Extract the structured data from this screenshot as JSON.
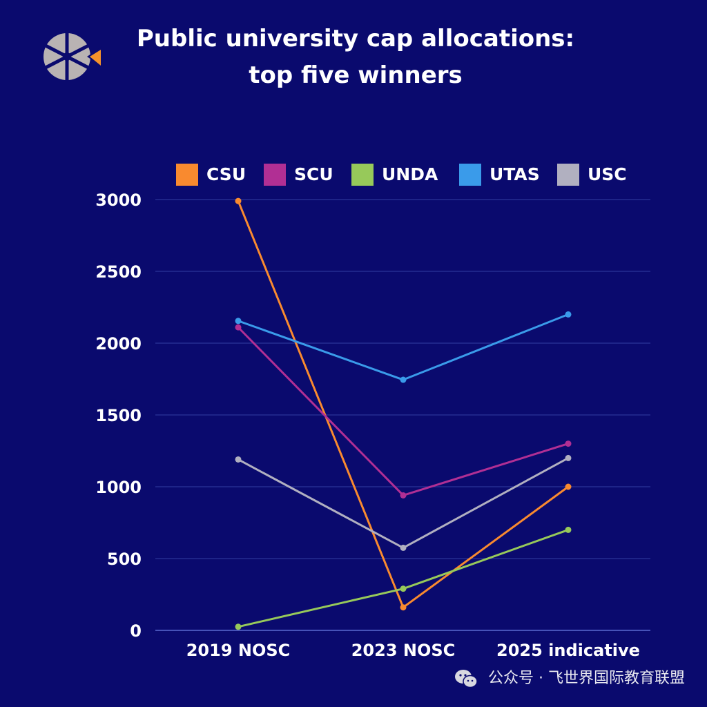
{
  "title": {
    "line1": "Public university cap allocations:",
    "line2": "top five winners"
  },
  "colors": {
    "background": "#0a0a6e",
    "grid": "#2b3599",
    "axis": "#5a6bd0",
    "logo_gray": "#b9b3b3",
    "logo_orange": "#f5922b"
  },
  "logo": {
    "icon": "pinwheel-logo-icon"
  },
  "watermark": {
    "icon": "wechat-icon",
    "text": "公众号 · 飞世界国际教育联盟"
  },
  "chart_data": {
    "type": "line",
    "categories": [
      "2019 NOSC",
      "2023 NOSC",
      "2025 indicative"
    ],
    "ylim": [
      0,
      3000
    ],
    "yticks": [
      0,
      500,
      1000,
      1500,
      2000,
      2500,
      3000
    ],
    "grid": true,
    "legend_position": "top",
    "title": "Public university cap allocations: top five winners",
    "xlabel": "",
    "ylabel": "",
    "series": [
      {
        "name": "CSU",
        "color": "#f98a2f",
        "values": [
          2990,
          160,
          1000
        ]
      },
      {
        "name": "SCU",
        "color": "#b12f94",
        "values": [
          2110,
          940,
          1300
        ]
      },
      {
        "name": "UNDA",
        "color": "#97c95a",
        "values": [
          25,
          290,
          700
        ]
      },
      {
        "name": "UTAS",
        "color": "#3a9bea",
        "values": [
          2155,
          1745,
          2200
        ]
      },
      {
        "name": "USC",
        "color": "#b1b0c0",
        "values": [
          1190,
          575,
          1200
        ]
      }
    ]
  }
}
